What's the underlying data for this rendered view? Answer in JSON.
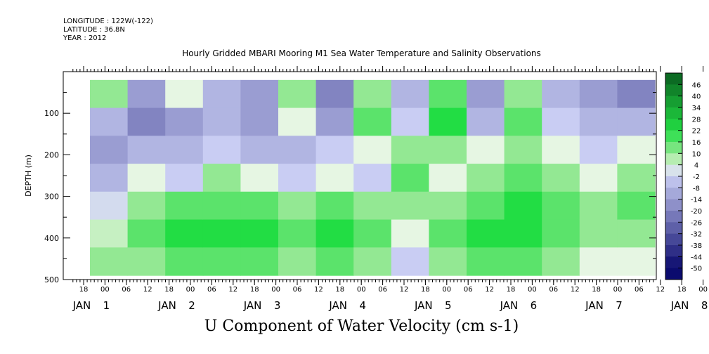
{
  "header": {
    "longitude": "LONGITUDE : 122W(-122)",
    "latitude": "LATITUDE : 36.8N",
    "year": "YEAR : 2012"
  },
  "chart_data": {
    "type": "heatmap",
    "title": "Hourly Gridded MBARI Mooring M1 Sea Water Temperature and Salinity Observations",
    "bottom_label": "U Component of Water Velocity (cm s-1)",
    "ylabel": "DEPTH (m)",
    "ylim": [
      500,
      0
    ],
    "y_ticks": [
      100,
      200,
      300,
      400,
      500
    ],
    "x_hour_ticks": [
      "18",
      "00",
      "06",
      "12",
      "18",
      "00",
      "06",
      "12",
      "18",
      "00",
      "06",
      "12",
      "18",
      "00",
      "06",
      "12",
      "18",
      "00",
      "06",
      "12",
      "18",
      "00",
      "06",
      "12",
      "18",
      "00",
      "06",
      "12",
      "18",
      "00",
      "06"
    ],
    "x_day_labels": [
      {
        "day": "JAN",
        "num": "1"
      },
      {
        "day": "JAN",
        "num": "2"
      },
      {
        "day": "JAN",
        "num": "3"
      },
      {
        "day": "JAN",
        "num": "4"
      },
      {
        "day": "JAN",
        "num": "5"
      },
      {
        "day": "JAN",
        "num": "6"
      },
      {
        "day": "JAN",
        "num": "7"
      },
      {
        "day": "JAN",
        "num": "8"
      }
    ],
    "colorbar_labels": [
      "46",
      "40",
      "34",
      "28",
      "22",
      "16",
      "10",
      "4",
      "-2",
      "-8",
      "-14",
      "-20",
      "-26",
      "-32",
      "-38",
      "-44",
      "-50"
    ],
    "colorbar_range": [
      -50,
      52
    ],
    "data_depth_range": [
      20,
      490
    ],
    "columns": [
      {
        "label": "JAN 1 00",
        "values": [
          10,
          -8,
          -14,
          -8,
          0,
          6,
          10
        ]
      },
      {
        "label": "JAN 1 12",
        "values": [
          -14,
          -20,
          -8,
          4,
          10,
          16,
          10
        ]
      },
      {
        "label": "JAN 2 00",
        "values": [
          4,
          -14,
          -8,
          -2,
          16,
          22,
          16
        ]
      },
      {
        "label": "JAN 2 12",
        "values": [
          -8,
          -8,
          -2,
          10,
          16,
          22,
          16
        ]
      },
      {
        "label": "JAN 3 00",
        "values": [
          -14,
          -14,
          -8,
          4,
          16,
          22,
          16
        ]
      },
      {
        "label": "JAN 3 12",
        "values": [
          10,
          4,
          -8,
          -2,
          10,
          16,
          10
        ]
      },
      {
        "label": "JAN 4 00",
        "values": [
          -20,
          -14,
          -2,
          4,
          16,
          22,
          16
        ]
      },
      {
        "label": "JAN 4 12",
        "values": [
          10,
          16,
          4,
          -2,
          10,
          16,
          10
        ]
      },
      {
        "label": "JAN 5 00",
        "values": [
          -8,
          -2,
          10,
          16,
          10,
          4,
          -2
        ]
      },
      {
        "label": "JAN 5 12",
        "values": [
          16,
          22,
          10,
          4,
          10,
          16,
          10
        ]
      },
      {
        "label": "JAN 6 00",
        "values": [
          -14,
          -8,
          4,
          10,
          16,
          22,
          16
        ]
      },
      {
        "label": "JAN 6 12",
        "values": [
          10,
          16,
          10,
          16,
          22,
          22,
          16
        ]
      },
      {
        "label": "JAN 7 00",
        "values": [
          -8,
          -2,
          4,
          10,
          16,
          16,
          10
        ]
      },
      {
        "label": "JAN 7 12",
        "values": [
          -14,
          -8,
          -2,
          4,
          10,
          10,
          4
        ]
      },
      {
        "label": "JAN 8 00",
        "values": [
          -20,
          -8,
          4,
          10,
          16,
          10,
          4
        ]
      }
    ],
    "colors": {
      "neg_extreme": "#0b0b6e",
      "neg_light": "#c9cdf3",
      "zero": "#e6f6e3",
      "pos_light": "#a6eaa0",
      "pos_mid": "#22dd44",
      "pos_extreme": "#0a5e1f"
    }
  }
}
